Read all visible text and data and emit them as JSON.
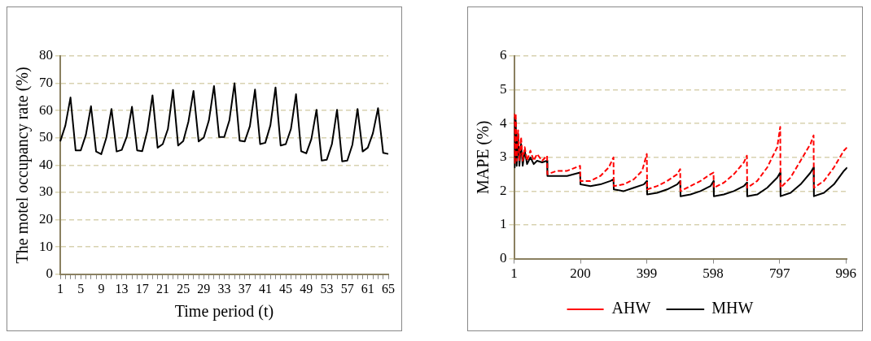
{
  "chart_data": [
    {
      "type": "line",
      "xlabel": "Time period (t)",
      "ylabel": "The motel occupancy rate (%)",
      "categories": [
        "1",
        null,
        null,
        null,
        "5",
        null,
        null,
        null,
        "9",
        null,
        null,
        null,
        "13",
        null,
        null,
        null,
        "17",
        null,
        null,
        null,
        "21",
        null,
        null,
        null,
        "25",
        null,
        null,
        null,
        "29",
        null,
        null,
        null,
        "33",
        null,
        null,
        null,
        "37",
        null,
        null,
        null,
        "41",
        null,
        null,
        null,
        "45",
        null,
        null,
        null,
        "49",
        null,
        null,
        null,
        "53",
        null,
        null,
        null,
        "57",
        null,
        null,
        null,
        "61",
        null,
        null,
        null,
        "65"
      ],
      "series": [
        {
          "color": "#000000",
          "values": [
            48.7,
            54.5,
            64.8,
            45.4,
            45.4,
            51.1,
            61.6,
            45.0,
            44.0,
            50.1,
            60.6,
            45.0,
            45.6,
            50.6,
            61.4,
            45.4,
            45.1,
            52.7,
            65.6,
            46.4,
            47.7,
            53.2,
            67.6,
            47.2,
            48.8,
            55.9,
            67.2,
            48.7,
            50.1,
            56.4,
            69.0,
            50.3,
            50.3,
            56.4,
            70.0,
            49.0,
            48.7,
            54.3,
            67.7,
            47.7,
            48.2,
            54.6,
            68.5,
            47.2,
            47.7,
            53.2,
            66.0,
            45.1,
            44.3,
            49.6,
            60.3,
            41.7,
            42.0,
            47.7,
            60.3,
            41.4,
            41.7,
            47.5,
            60.6,
            45.0,
            46.4,
            51.7,
            60.9,
            44.5,
            44.1
          ]
        }
      ],
      "ylim": [
        0,
        80
      ],
      "yticks": [
        0,
        10,
        20,
        30,
        40,
        50,
        60,
        70,
        80
      ],
      "grid": "y",
      "legend": false,
      "marker": "none"
    },
    {
      "type": "line",
      "ylabel": "MAPE (%)",
      "xlim": [
        1,
        1000
      ],
      "xticks": [
        1,
        200,
        399,
        598,
        797,
        996
      ],
      "ylim": [
        0,
        6
      ],
      "yticks": [
        0,
        1,
        2,
        3,
        4,
        5,
        6
      ],
      "grid": "y",
      "legend": "bottom",
      "marker": "none",
      "series": [
        {
          "name": "MHW",
          "color": "#000000",
          "line_style": "solid",
          "x": [
            1,
            3,
            6,
            9,
            13,
            17,
            22,
            27,
            33,
            40,
            50,
            60,
            70,
            85,
            100,
            101,
            130,
            160,
            199,
            200,
            230,
            260,
            290,
            299,
            300,
            330,
            360,
            390,
            399,
            400,
            430,
            460,
            490,
            499,
            500,
            530,
            560,
            590,
            599,
            600,
            630,
            660,
            690,
            699,
            700,
            730,
            760,
            790,
            799,
            800,
            830,
            860,
            890,
            899,
            900,
            930,
            960,
            990,
            1000
          ],
          "values": [
            4.2,
            2.7,
            4.1,
            2.75,
            3.7,
            2.75,
            3.4,
            2.75,
            3.2,
            2.8,
            3.0,
            2.8,
            2.9,
            2.85,
            2.9,
            2.45,
            2.45,
            2.45,
            2.55,
            2.2,
            2.15,
            2.2,
            2.3,
            2.35,
            2.05,
            2.0,
            2.1,
            2.2,
            2.3,
            1.9,
            1.95,
            2.05,
            2.2,
            2.3,
            1.85,
            1.9,
            2.0,
            2.15,
            2.3,
            1.85,
            1.9,
            2.0,
            2.15,
            2.25,
            1.85,
            1.9,
            2.1,
            2.4,
            2.55,
            1.85,
            1.95,
            2.2,
            2.55,
            2.7,
            1.85,
            1.95,
            2.2,
            2.6,
            2.7
          ]
        },
        {
          "name": "AHW",
          "color": "#ff0000",
          "line_style": "dashed",
          "x": [
            1,
            3,
            6,
            9,
            13,
            17,
            22,
            27,
            33,
            40,
            50,
            60,
            70,
            85,
            100,
            101,
            130,
            160,
            199,
            200,
            230,
            260,
            285,
            299,
            300,
            330,
            360,
            385,
            399,
            400,
            430,
            460,
            490,
            499,
            500,
            530,
            560,
            590,
            599,
            600,
            630,
            660,
            690,
            699,
            700,
            730,
            760,
            790,
            799,
            800,
            830,
            860,
            890,
            899,
            900,
            930,
            960,
            990,
            1000
          ],
          "values": [
            4.3,
            2.8,
            4.3,
            2.9,
            3.8,
            2.9,
            3.6,
            2.9,
            3.3,
            2.9,
            3.2,
            2.9,
            3.1,
            2.9,
            3.05,
            2.5,
            2.6,
            2.6,
            2.75,
            2.3,
            2.3,
            2.45,
            2.7,
            3.0,
            2.15,
            2.2,
            2.35,
            2.6,
            3.1,
            2.05,
            2.15,
            2.3,
            2.5,
            2.65,
            2.0,
            2.15,
            2.3,
            2.5,
            2.55,
            2.1,
            2.25,
            2.5,
            2.85,
            3.05,
            2.1,
            2.3,
            2.7,
            3.3,
            3.9,
            2.1,
            2.4,
            2.9,
            3.4,
            3.65,
            2.1,
            2.3,
            2.7,
            3.2,
            3.3
          ]
        }
      ]
    }
  ]
}
